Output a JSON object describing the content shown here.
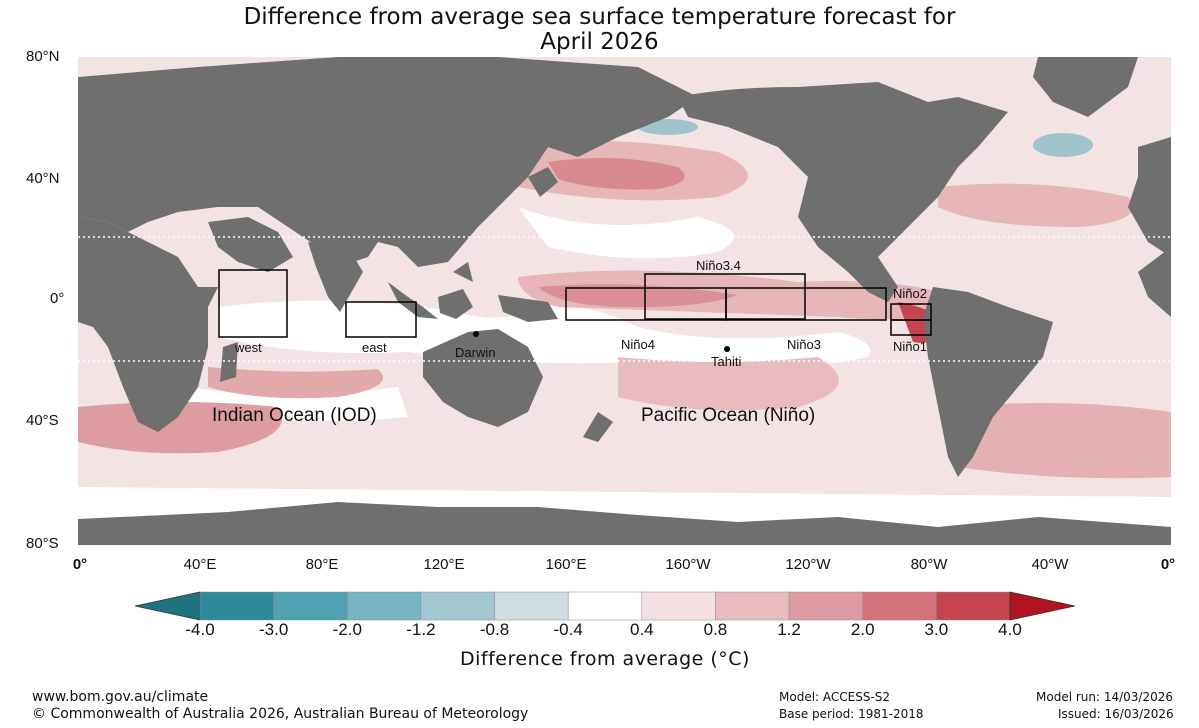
{
  "title_line1": "Difference from average sea surface temperature forecast for",
  "title_line2": "April 2026",
  "lat_ticks": [
    "80°N",
    "40°N",
    "0°",
    "40°S",
    "80°S"
  ],
  "lon_ticks": [
    "0°",
    "40°E",
    "80°E",
    "120°E",
    "160°E",
    "160°W",
    "120°W",
    "80°W",
    "40°W",
    "0°"
  ],
  "regions": {
    "nino34": "Niño3.4",
    "nino2": "Niño2",
    "nino4": "Niño4",
    "nino3": "Niño3",
    "nino1": "Niño1",
    "west": "west",
    "east": "east",
    "darwin": "Darwin",
    "tahiti": "Tahiti"
  },
  "ocean_labels": {
    "indian": "Indian Ocean (IOD)",
    "pacific": "Pacific Ocean (Niño)"
  },
  "colorbar": {
    "ticks": [
      "-4.0",
      "-3.0",
      "-2.0",
      "-1.2",
      "-0.8",
      "-0.4",
      "0.4",
      "0.8",
      "1.2",
      "2.0",
      "3.0",
      "4.0"
    ],
    "colors": [
      "#2e8a9a",
      "#4ea2b2",
      "#77b5c3",
      "#a3c8d1",
      "#cfdde1",
      "#ffffff",
      "#f4e1e1",
      "#e8bcbe",
      "#dd9ca1",
      "#d2737c",
      "#c4454f"
    ],
    "under_color": "#1f7280",
    "over_color": "#b0141f",
    "label": "Difference from average (°C)"
  },
  "footer": {
    "url": "www.bom.gov.au/climate",
    "copyright": "© Commonwealth of Australia 2026, Australian Bureau of Meteorology",
    "model": "Model: ACCESS-S2",
    "base_period": "Base period: 1981-2018",
    "model_run": "Model run: 14/03/2026",
    "issued": "Issued: 16/03/2026"
  },
  "colors": {
    "land": "#6f6f6f",
    "ocean_white": "#ffffff",
    "anomaly_light": "#f2dede",
    "anomaly_mid": "#e5b3b6",
    "anomaly_strong": "#d97f87",
    "anomaly_cool": "#9fc4cc"
  }
}
